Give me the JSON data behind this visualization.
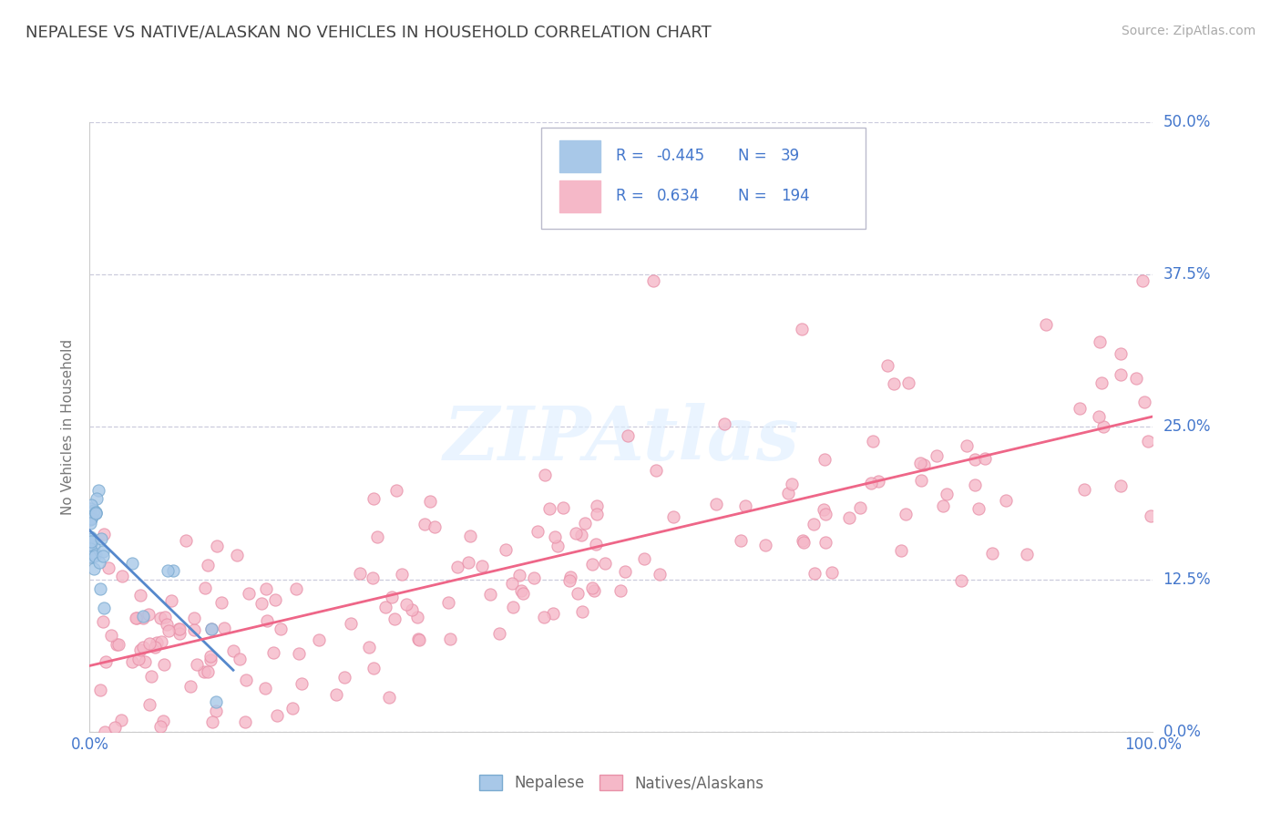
{
  "title": "NEPALESE VS NATIVE/ALASKAN NO VEHICLES IN HOUSEHOLD CORRELATION CHART",
  "source": "Source: ZipAtlas.com",
  "ylabel": "No Vehicles in Household",
  "xlim": [
    0.0,
    1.0
  ],
  "ylim": [
    0.0,
    0.5
  ],
  "yticks": [
    0.0,
    0.125,
    0.25,
    0.375,
    0.5
  ],
  "ytick_labels": [
    "",
    "12.5%",
    "25.0%",
    "37.5%",
    "50.0%"
  ],
  "ytick_labels_right": [
    "0.0%",
    "12.5%",
    "25.0%",
    "37.5%",
    "50.0%"
  ],
  "watermark": "ZIPAtlas",
  "legend_r1": "-0.445",
  "legend_n1": "39",
  "legend_r2": "0.634",
  "legend_n2": "194",
  "color_nepalese": "#a8c8e8",
  "color_native": "#f5b8c8",
  "color_nepalese_edge": "#7aaad0",
  "color_native_edge": "#e890a8",
  "color_line_nepalese": "#5588cc",
  "color_line_native": "#ee6688",
  "color_blue": "#4477cc",
  "color_label": "#888888",
  "background": "#ffffff",
  "grid_color": "#ccccdd",
  "title_color": "#444444"
}
